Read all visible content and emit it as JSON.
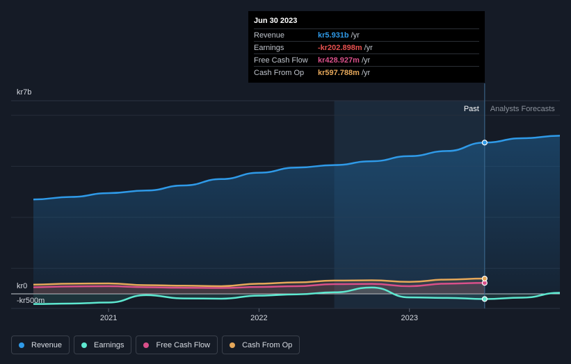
{
  "tooltip": {
    "date": "Jun 30 2023",
    "rows": [
      {
        "label": "Revenue",
        "value": "kr5.931b",
        "unit": "/yr",
        "color": "#2f9ae8"
      },
      {
        "label": "Earnings",
        "value": "-kr202.898m",
        "unit": "/yr",
        "color": "#e8514f"
      },
      {
        "label": "Free Cash Flow",
        "value": "kr428.927m",
        "unit": "/yr",
        "color": "#d9508a"
      },
      {
        "label": "Cash From Op",
        "value": "kr597.788m",
        "unit": "/yr",
        "color": "#e6a85a"
      }
    ]
  },
  "legend": [
    {
      "label": "Revenue",
      "color": "#2f9ae8"
    },
    {
      "label": "Earnings",
      "color": "#5ee8d0"
    },
    {
      "label": "Free Cash Flow",
      "color": "#d9508a"
    },
    {
      "label": "Cash From Op",
      "color": "#e6a85a"
    }
  ],
  "chart_data": {
    "type": "line",
    "y_labels": [
      "kr7b",
      "kr0",
      "-kr500m"
    ],
    "ylim": [
      -500,
      7000
    ],
    "y_unit": "kr m",
    "x_ticks": [
      {
        "label": "2021",
        "x": 2021.0
      },
      {
        "label": "2022",
        "x": 2022.0
      },
      {
        "label": "2023",
        "x": 2023.0
      }
    ],
    "xlim": [
      2020.5,
      2024.0
    ],
    "past_label": "Past",
    "forecast_label": "Analysts Forecasts",
    "split_x": 2023.5,
    "highlight_start": 2022.5,
    "grid": true,
    "legend_position": "bottom-left",
    "series": [
      {
        "name": "Revenue",
        "color": "#2f9ae8",
        "points": [
          [
            2020.5,
            3700
          ],
          [
            2020.75,
            3800
          ],
          [
            2021.0,
            3950
          ],
          [
            2021.25,
            4050
          ],
          [
            2021.5,
            4250
          ],
          [
            2021.75,
            4500
          ],
          [
            2022.0,
            4750
          ],
          [
            2022.25,
            4950
          ],
          [
            2022.5,
            5050
          ],
          [
            2022.75,
            5200
          ],
          [
            2023.0,
            5400
          ],
          [
            2023.25,
            5600
          ],
          [
            2023.5,
            5931
          ]
        ],
        "forecast": [
          [
            2023.5,
            5931
          ],
          [
            2023.75,
            6100
          ],
          [
            2024.0,
            6200
          ]
        ]
      },
      {
        "name": "Earnings",
        "color": "#5ee8d0",
        "points": [
          [
            2020.5,
            -400
          ],
          [
            2020.75,
            -380
          ],
          [
            2021.0,
            -340
          ],
          [
            2021.25,
            -50
          ],
          [
            2021.5,
            -180
          ],
          [
            2021.75,
            -190
          ],
          [
            2022.0,
            -70
          ],
          [
            2022.25,
            -20
          ],
          [
            2022.5,
            60
          ],
          [
            2022.75,
            250
          ],
          [
            2023.0,
            -140
          ],
          [
            2023.25,
            -160
          ],
          [
            2023.5,
            -203
          ]
        ],
        "forecast": [
          [
            2023.5,
            -203
          ],
          [
            2023.75,
            -150
          ],
          [
            2024.0,
            40
          ]
        ]
      },
      {
        "name": "Free Cash Flow",
        "color": "#d9508a",
        "points": [
          [
            2020.5,
            260
          ],
          [
            2020.75,
            290
          ],
          [
            2021.0,
            300
          ],
          [
            2021.25,
            260
          ],
          [
            2021.5,
            240
          ],
          [
            2021.75,
            230
          ],
          [
            2022.0,
            270
          ],
          [
            2022.25,
            300
          ],
          [
            2022.5,
            380
          ],
          [
            2022.75,
            390
          ],
          [
            2023.0,
            300
          ],
          [
            2023.25,
            400
          ],
          [
            2023.5,
            429
          ]
        ]
      },
      {
        "name": "Cash From Op",
        "color": "#e6a85a",
        "points": [
          [
            2020.5,
            360
          ],
          [
            2020.75,
            400
          ],
          [
            2021.0,
            410
          ],
          [
            2021.25,
            340
          ],
          [
            2021.5,
            320
          ],
          [
            2021.75,
            300
          ],
          [
            2022.0,
            400
          ],
          [
            2022.25,
            450
          ],
          [
            2022.5,
            520
          ],
          [
            2022.75,
            530
          ],
          [
            2023.0,
            470
          ],
          [
            2023.25,
            560
          ],
          [
            2023.5,
            598
          ]
        ]
      }
    ]
  }
}
